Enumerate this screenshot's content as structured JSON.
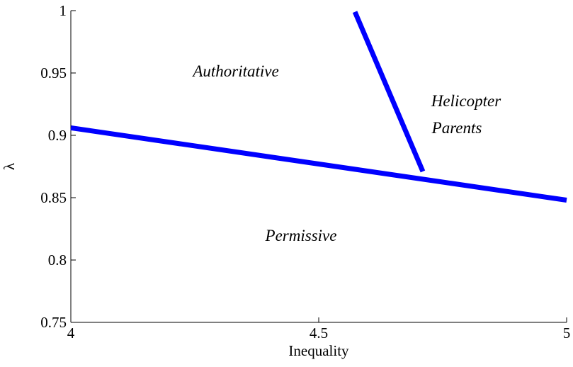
{
  "chart_data": {
    "type": "line",
    "xlabel": "Inequality",
    "ylabel": "λ",
    "xlim": [
      4,
      5
    ],
    "xticks": [
      4,
      4.5,
      5
    ],
    "ylim": [
      0.75,
      1
    ],
    "yticks": [
      0.75,
      0.8,
      0.85,
      0.9,
      0.95,
      1
    ],
    "series": [
      {
        "color": "#0000ff",
        "x": [
          4,
          5
        ],
        "values": [
          0.906,
          0.848
        ]
      },
      {
        "color": "#0000ff",
        "x": [
          4.573,
          4.71
        ],
        "values": [
          0.999,
          0.871
        ]
      }
    ],
    "annotations": [
      "Authoritative",
      "Helicopter",
      "Parents",
      "Permissive"
    ]
  }
}
